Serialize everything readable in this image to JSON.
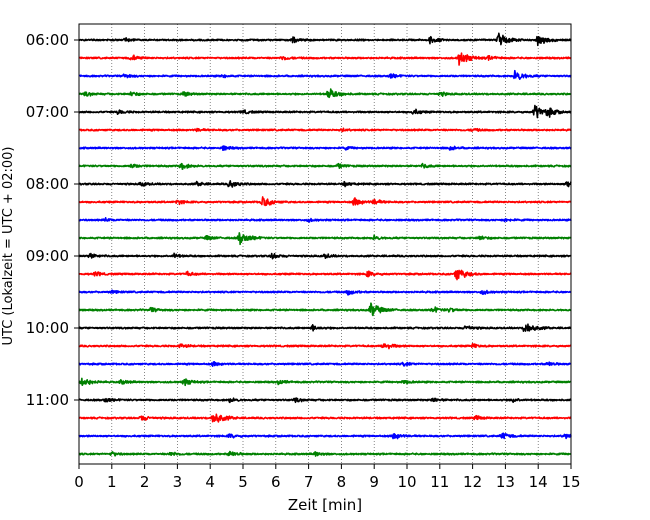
{
  "chart_data": {
    "type": "line",
    "title": "",
    "xlabel": "Zeit  [min]",
    "ylabel": "UTC (Lokalzeit = UTC + 02:00)",
    "xlim": [
      0,
      15
    ],
    "xticks": [
      0,
      1,
      2,
      3,
      4,
      5,
      6,
      7,
      8,
      9,
      10,
      11,
      12,
      13,
      14,
      15
    ],
    "xticklabels": [
      "0",
      "1",
      "2",
      "3",
      "4",
      "5",
      "6",
      "7",
      "8",
      "9",
      "10",
      "11",
      "12",
      "13",
      "14",
      "15"
    ],
    "yticklabels": [
      "06:00",
      "07:00",
      "08:00",
      "09:00",
      "10:00",
      "11:00"
    ],
    "grid": "vertical dotted at each minute",
    "trace_interval_minutes": 15,
    "start_time": "06:00",
    "colors_cycle": [
      "#000000",
      "#ff0000",
      "#0000ff",
      "#008000"
    ],
    "traces": [
      {
        "start": "06:00",
        "color": "#000000",
        "events": [
          [
            1.4,
            0.3
          ],
          [
            6.5,
            0.4
          ],
          [
            10.7,
            0.5
          ],
          [
            12.8,
            1.0
          ],
          [
            14.0,
            0.8
          ]
        ]
      },
      {
        "start": "06:15",
        "color": "#ff0000",
        "events": [
          [
            1.6,
            0.4
          ],
          [
            6.2,
            0.3
          ],
          [
            11.6,
            1.0
          ],
          [
            12.5,
            0.3
          ]
        ]
      },
      {
        "start": "06:30",
        "color": "#0000ff",
        "events": [
          [
            1.4,
            0.3
          ],
          [
            4.4,
            0.2
          ],
          [
            9.5,
            0.3
          ],
          [
            13.3,
            0.8
          ]
        ]
      },
      {
        "start": "06:45",
        "color": "#008000",
        "events": [
          [
            0.2,
            0.3
          ],
          [
            1.6,
            0.3
          ],
          [
            3.2,
            0.3
          ],
          [
            7.6,
            0.8
          ],
          [
            11.0,
            0.3
          ]
        ]
      },
      {
        "start": "07:00",
        "color": "#000000",
        "events": [
          [
            1.2,
            0.3
          ],
          [
            5.0,
            0.3
          ],
          [
            10.2,
            0.4
          ],
          [
            13.9,
            1.0
          ],
          [
            14.3,
            0.5
          ]
        ]
      },
      {
        "start": "07:15",
        "color": "#ff0000",
        "events": [
          [
            3.6,
            0.2
          ],
          [
            8.0,
            0.2
          ],
          [
            12.0,
            0.2
          ]
        ]
      },
      {
        "start": "07:30",
        "color": "#0000ff",
        "events": [
          [
            4.4,
            0.3
          ],
          [
            8.1,
            0.2
          ],
          [
            11.3,
            0.3
          ]
        ]
      },
      {
        "start": "07:45",
        "color": "#008000",
        "events": [
          [
            1.6,
            0.3
          ],
          [
            3.1,
            0.5
          ],
          [
            7.9,
            0.3
          ],
          [
            10.5,
            0.3
          ]
        ]
      },
      {
        "start": "08:00",
        "color": "#000000",
        "events": [
          [
            1.9,
            0.3
          ],
          [
            3.6,
            0.3
          ],
          [
            4.6,
            0.6
          ],
          [
            8.1,
            0.3
          ],
          [
            14.9,
            0.8
          ]
        ]
      },
      {
        "start": "08:15",
        "color": "#ff0000",
        "events": [
          [
            3.0,
            0.3
          ],
          [
            5.6,
            0.8
          ],
          [
            8.4,
            0.6
          ],
          [
            9.0,
            0.4
          ]
        ]
      },
      {
        "start": "08:30",
        "color": "#0000ff",
        "events": [
          [
            0.8,
            0.2
          ],
          [
            7.0,
            0.2
          ],
          [
            13.0,
            0.2
          ]
        ]
      },
      {
        "start": "08:45",
        "color": "#008000",
        "events": [
          [
            3.9,
            0.3
          ],
          [
            4.9,
            0.9
          ],
          [
            9.0,
            0.3
          ],
          [
            12.2,
            0.3
          ]
        ]
      },
      {
        "start": "09:00",
        "color": "#000000",
        "events": [
          [
            0.3,
            0.4
          ],
          [
            2.9,
            0.3
          ],
          [
            5.9,
            0.4
          ],
          [
            7.5,
            0.3
          ]
        ]
      },
      {
        "start": "09:15",
        "color": "#ff0000",
        "events": [
          [
            0.5,
            0.3
          ],
          [
            3.3,
            0.3
          ],
          [
            8.8,
            0.4
          ],
          [
            11.5,
            1.0
          ]
        ]
      },
      {
        "start": "09:30",
        "color": "#0000ff",
        "events": [
          [
            1.0,
            0.2
          ],
          [
            8.2,
            0.4
          ],
          [
            12.3,
            0.3
          ]
        ]
      },
      {
        "start": "09:45",
        "color": "#008000",
        "events": [
          [
            2.2,
            0.3
          ],
          [
            8.9,
            1.0
          ],
          [
            10.8,
            0.4
          ],
          [
            11.3,
            0.3
          ]
        ]
      },
      {
        "start": "10:00",
        "color": "#000000",
        "events": [
          [
            7.1,
            0.4
          ],
          [
            11.8,
            0.4
          ],
          [
            13.6,
            0.9
          ]
        ]
      },
      {
        "start": "10:15",
        "color": "#ff0000",
        "events": [
          [
            3.1,
            0.3
          ],
          [
            9.3,
            0.6
          ],
          [
            12.0,
            0.3
          ]
        ]
      },
      {
        "start": "10:30",
        "color": "#0000ff",
        "events": [
          [
            4.1,
            0.3
          ],
          [
            9.9,
            0.3
          ],
          [
            14.3,
            0.3
          ]
        ]
      },
      {
        "start": "10:45",
        "color": "#008000",
        "events": [
          [
            0.1,
            0.7
          ],
          [
            1.3,
            0.3
          ],
          [
            3.2,
            0.5
          ],
          [
            6.1,
            0.3
          ],
          [
            9.9,
            0.3
          ]
        ]
      },
      {
        "start": "11:00",
        "color": "#000000",
        "events": [
          [
            0.8,
            0.3
          ],
          [
            4.6,
            0.3
          ],
          [
            6.6,
            0.3
          ],
          [
            10.8,
            0.3
          ],
          [
            13.2,
            0.3
          ]
        ]
      },
      {
        "start": "11:15",
        "color": "#ff0000",
        "events": [
          [
            1.9,
            0.4
          ],
          [
            4.1,
            1.0
          ],
          [
            12.1,
            0.3
          ]
        ]
      },
      {
        "start": "11:30",
        "color": "#0000ff",
        "events": [
          [
            4.6,
            0.3
          ],
          [
            9.6,
            0.5
          ],
          [
            12.9,
            0.5
          ],
          [
            14.8,
            0.4
          ]
        ]
      },
      {
        "start": "11:45",
        "color": "#008000",
        "events": [
          [
            1.0,
            0.3
          ],
          [
            2.8,
            0.3
          ],
          [
            4.6,
            0.4
          ],
          [
            7.2,
            0.3
          ]
        ]
      }
    ]
  }
}
